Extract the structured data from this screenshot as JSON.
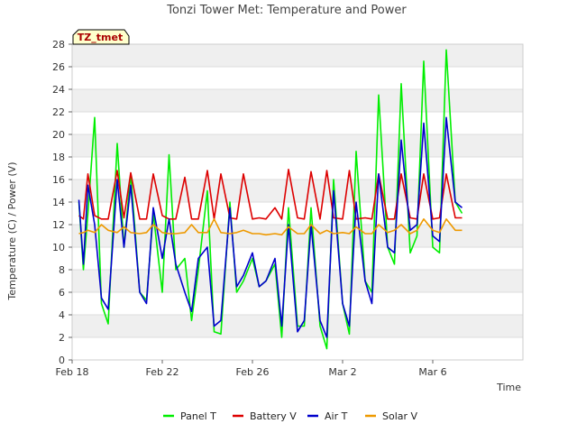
{
  "chart_data": {
    "type": "line",
    "title": "Tonzi Tower Met: Temperature and Power",
    "xlabel": "Time",
    "ylabel": "Temperature (C) / Power (V)",
    "badge": "TZ_tmet",
    "ylim": [
      0,
      28
    ],
    "yticks": [
      0,
      2,
      4,
      6,
      8,
      10,
      12,
      14,
      16,
      18,
      20,
      22,
      24,
      26,
      28
    ],
    "xlim": [
      0,
      20
    ],
    "xticks": [
      {
        "value": 0,
        "label": "Feb 18"
      },
      {
        "value": 4,
        "label": "Feb 22"
      },
      {
        "value": 8,
        "label": "Feb 26"
      },
      {
        "value": 12,
        "label": "Mar 2"
      },
      {
        "value": 16,
        "label": "Mar 6"
      }
    ],
    "grid": "horizontal bands",
    "legend": "bottom",
    "x": [
      0.3,
      0.5,
      0.7,
      1.0,
      1.3,
      1.6,
      2.0,
      2.3,
      2.6,
      3.0,
      3.3,
      3.6,
      4.0,
      4.3,
      4.6,
      5.0,
      5.3,
      5.6,
      6.0,
      6.3,
      6.6,
      7.0,
      7.3,
      7.6,
      8.0,
      8.3,
      8.6,
      9.0,
      9.3,
      9.6,
      10.0,
      10.3,
      10.6,
      11.0,
      11.3,
      11.6,
      12.0,
      12.3,
      12.6,
      13.0,
      13.3,
      13.6,
      14.0,
      14.3,
      14.6,
      15.0,
      15.3,
      15.6,
      16.0,
      16.3,
      16.6,
      17.0,
      17.3
    ],
    "series": [
      {
        "name": "Panel T",
        "color": "#00ee00",
        "values": [
          14.0,
          8.0,
          13.0,
          21.5,
          5.0,
          3.2,
          19.2,
          10.0,
          16.5,
          6.0,
          5.3,
          13.0,
          6.0,
          18.2,
          8.0,
          9.0,
          3.5,
          8.0,
          15.0,
          2.5,
          2.3,
          14.0,
          6.0,
          7.0,
          9.0,
          6.5,
          7.0,
          8.5,
          2.0,
          13.5,
          3.0,
          3.0,
          13.5,
          3.0,
          1.0,
          16.0,
          5.0,
          2.3,
          18.5,
          7.0,
          6.0,
          23.5,
          10.0,
          8.5,
          24.5,
          9.5,
          11.0,
          26.5,
          10.0,
          9.5,
          27.5,
          14.0,
          13.0
        ]
      },
      {
        "name": "Battery V",
        "color": "#dd0000",
        "values": [
          12.8,
          12.5,
          16.5,
          12.8,
          12.5,
          12.5,
          16.8,
          12.6,
          16.6,
          12.5,
          12.5,
          16.5,
          12.8,
          12.5,
          12.5,
          16.2,
          12.5,
          12.5,
          16.8,
          12.5,
          16.5,
          12.6,
          12.5,
          16.5,
          12.5,
          12.6,
          12.5,
          13.5,
          12.5,
          16.9,
          12.6,
          12.5,
          16.7,
          12.5,
          16.8,
          12.6,
          12.5,
          16.8,
          12.5,
          12.6,
          12.5,
          16.5,
          12.5,
          12.5,
          16.5,
          12.6,
          12.5,
          16.5,
          12.5,
          12.6,
          16.5,
          12.6,
          12.6
        ]
      },
      {
        "name": "Air T",
        "color": "#0000cc",
        "values": [
          14.2,
          8.5,
          15.5,
          12.0,
          5.5,
          4.5,
          16.0,
          10.0,
          15.5,
          6.0,
          5.0,
          13.5,
          9.0,
          12.5,
          8.5,
          6.0,
          4.3,
          9.0,
          10.0,
          3.0,
          3.5,
          13.5,
          6.5,
          7.5,
          9.5,
          6.5,
          7.0,
          9.0,
          3.0,
          12.0,
          2.5,
          3.5,
          12.0,
          3.5,
          2.0,
          15.0,
          5.0,
          3.0,
          14.0,
          7.0,
          5.0,
          16.5,
          10.0,
          9.5,
          19.5,
          11.5,
          12.0,
          21.0,
          11.0,
          10.5,
          21.5,
          14.0,
          13.5
        ]
      },
      {
        "name": "Solar V",
        "color": "#ee9900",
        "values": [
          11.2,
          11.3,
          11.5,
          11.3,
          12.0,
          11.5,
          11.3,
          11.8,
          11.3,
          11.2,
          11.3,
          12.0,
          11.3,
          11.2,
          11.2,
          11.3,
          12.0,
          11.3,
          11.3,
          12.5,
          11.3,
          11.2,
          11.3,
          11.5,
          11.2,
          11.2,
          11.1,
          11.2,
          11.1,
          11.8,
          11.2,
          11.2,
          12.0,
          11.2,
          11.5,
          11.2,
          11.3,
          11.2,
          11.8,
          11.2,
          11.2,
          12.0,
          11.3,
          11.5,
          12.0,
          11.2,
          11.5,
          12.5,
          11.5,
          11.3,
          12.5,
          11.5,
          11.5
        ]
      }
    ]
  }
}
